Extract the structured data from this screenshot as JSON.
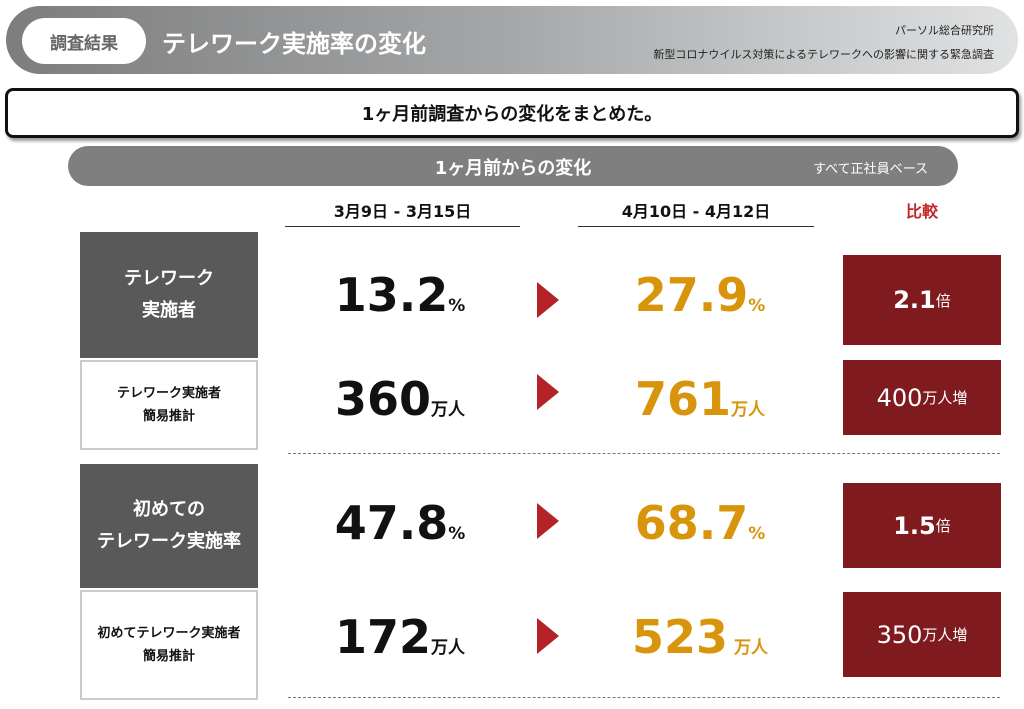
{
  "header": {
    "tag": "調査結果",
    "title": "テレワーク実施率の変化",
    "org": "パーソル総合研究所",
    "survey": "新型コロナウイルス対策によるテレワークへの影響に関する緊急調査"
  },
  "summary": "1ヶ月前調査からの変化をまとめた。",
  "subbar": {
    "title": "1ヶ月前からの変化",
    "basis": "すべて正社員ベース"
  },
  "columns": {
    "before": "3月9日 - 3月15日",
    "after": "4月10日 - 4月12日",
    "compare": "比較"
  },
  "colors": {
    "after": "#d8950b",
    "compare_bg": "#7f1a1f",
    "arrow": "#b52227",
    "compare_header": "#c0282d"
  },
  "rows": [
    {
      "label1": "テレワーク",
      "label2": "実施者",
      "before": "13.2",
      "before_unit": "%",
      "after": "27.9",
      "after_unit": "%",
      "compare": "2.1",
      "compare_unit": "倍"
    },
    {
      "label1": "テレワーク実施者",
      "label2": "簡易推計",
      "before": "360",
      "before_unit": "万人",
      "after": "761",
      "after_unit": "万人",
      "compare": "400",
      "compare_unit": "万人増"
    },
    {
      "label1": "初めての",
      "label2": "テレワーク実施率",
      "before": "47.8",
      "before_unit": "%",
      "after": "68.7",
      "after_unit": "%",
      "compare": "1.5",
      "compare_unit": "倍"
    },
    {
      "label1": "初めてテレワーク実施者",
      "label2": "簡易推計",
      "before": "172",
      "before_unit": "万人",
      "after": "523",
      "after_unit": " 万人",
      "compare": "350",
      "compare_unit": "万人増"
    }
  ]
}
